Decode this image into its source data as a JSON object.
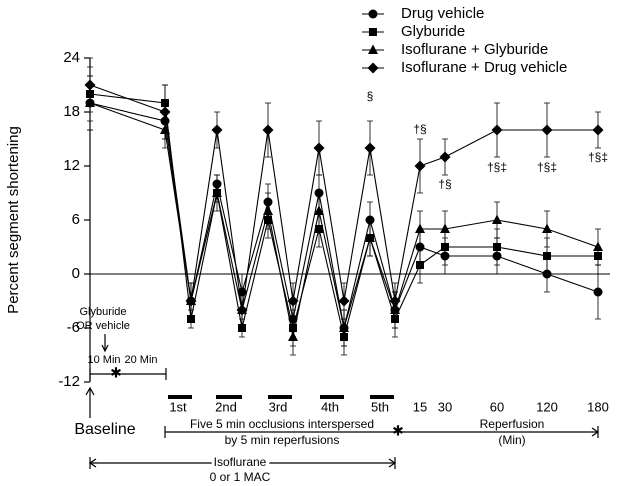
{
  "chart_data": {
    "type": "line",
    "y_label": "Percent segment shortening",
    "ylim": [
      -12,
      24
    ],
    "yticks": [
      24,
      18,
      12,
      6,
      0,
      -6,
      -12
    ],
    "categories": [
      "Baseline",
      null,
      null,
      null,
      null,
      null,
      null,
      null,
      null,
      null,
      null,
      "15",
      "30",
      "60",
      "120",
      "180"
    ],
    "occlusion_labels": [
      "1st",
      "2nd",
      "3rd",
      "4th",
      "5th"
    ],
    "series": [
      {
        "name": "Drug vehicle",
        "marker": "circle",
        "color": "#000000",
        "values": [
          19,
          17,
          -3,
          10,
          -2,
          8,
          -5,
          9,
          -6,
          6,
          -4,
          3,
          2,
          2,
          0,
          -2
        ],
        "errors": [
          3,
          2,
          2,
          1,
          2,
          2,
          2,
          2,
          2,
          2,
          2,
          2,
          2,
          2,
          2,
          3
        ]
      },
      {
        "name": "Glyburide",
        "marker": "square",
        "color": "#000000",
        "values": [
          20,
          19,
          -5,
          9,
          -6,
          6,
          -6,
          5,
          -7,
          4,
          -5,
          1,
          3,
          3,
          2,
          2
        ],
        "errors": [
          3,
          2,
          1,
          1,
          1,
          2,
          2,
          2,
          2,
          2,
          2,
          2,
          2,
          2,
          2,
          1
        ]
      },
      {
        "name": "Isoflurane + Glyburide",
        "marker": "triangle",
        "color": "#000000",
        "values": [
          19,
          16,
          -3,
          9,
          -4,
          7,
          -7,
          7,
          -6,
          4,
          -4,
          5,
          5,
          6,
          5,
          3
        ],
        "errors": [
          3,
          2,
          2,
          2,
          2,
          2,
          2,
          2,
          2,
          2,
          2,
          2,
          2,
          2,
          2,
          2
        ]
      },
      {
        "name": "Isoflurane + Drug vehicle",
        "marker": "diamond",
        "color": "#000000",
        "values": [
          21,
          18,
          -3,
          16,
          -4,
          16,
          -3,
          14,
          -3,
          14,
          -3,
          12,
          13,
          16,
          16,
          16
        ],
        "errors": [
          3,
          3,
          2,
          2,
          2,
          3,
          2,
          3,
          2,
          3,
          2,
          3,
          2,
          3,
          3,
          2
        ]
      }
    ],
    "legend": "upper right",
    "zero_line": true,
    "annotations": [
      "§",
      "†§",
      "†§",
      "†§‡",
      "†§‡",
      "†§‡"
    ],
    "notes": {
      "trigger": [
        "Glyburide",
        "OR vehicle"
      ],
      "interval_1": "10 Min",
      "interval_2": "20 Min",
      "occlusion_text": [
        "Five 5 min occlusions interspersed",
        "by 5 min reperfusions"
      ],
      "reperfusion_text": [
        "Reperfusion",
        "(Min)"
      ],
      "isoflurane_text": [
        "Isoflurane",
        "0 or 1 MAC"
      ]
    }
  }
}
